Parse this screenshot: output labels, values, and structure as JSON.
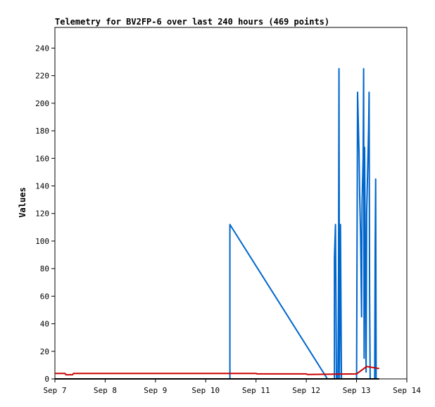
{
  "chart_data": {
    "type": "line",
    "title": "Telemetry for BV2FP-6 over last 240 hours (469 points)",
    "ylabel": "Values",
    "xlabel": "",
    "x_ticks": [
      "Sep 7",
      "Sep 8",
      "Sep 9",
      "Sep 10",
      "Sep 11",
      "Sep 12",
      "Sep 13",
      "Sep 14"
    ],
    "x_range": [
      "Sep 7",
      "Sep 14"
    ],
    "y_ticks": [
      0,
      20,
      40,
      60,
      80,
      100,
      120,
      140,
      160,
      180,
      200,
      220,
      240
    ],
    "ylim": [
      0,
      255
    ],
    "grid": false,
    "legend": "none",
    "series": [
      {
        "color": "#0066cc",
        "points": [
          [
            10.48,
            0
          ],
          [
            10.48,
            112
          ],
          [
            12.42,
            0
          ],
          [
            12.56,
            0
          ],
          [
            12.56,
            88
          ],
          [
            12.58,
            112
          ],
          [
            12.6,
            0
          ],
          [
            12.63,
            0
          ],
          [
            12.64,
            65
          ],
          [
            12.65,
            225
          ],
          [
            12.66,
            0
          ],
          [
            12.68,
            112
          ],
          [
            12.7,
            0
          ],
          [
            13.0,
            0
          ],
          [
            13.02,
            208
          ],
          [
            13.03,
            193
          ],
          [
            13.05,
            163
          ],
          [
            13.06,
            135
          ],
          [
            13.08,
            104
          ],
          [
            13.09,
            75
          ],
          [
            13.1,
            45
          ],
          [
            13.11,
            128
          ],
          [
            13.13,
            160
          ],
          [
            13.14,
            225
          ],
          [
            13.15,
            15
          ],
          [
            13.16,
            168
          ],
          [
            13.18,
            55
          ],
          [
            13.19,
            5
          ],
          [
            13.2,
            120
          ],
          [
            13.22,
            150
          ],
          [
            13.24,
            182
          ],
          [
            13.25,
            208
          ],
          [
            13.26,
            60
          ],
          [
            13.27,
            0
          ],
          [
            13.36,
            0
          ],
          [
            13.37,
            95
          ],
          [
            13.38,
            145
          ],
          [
            13.39,
            0
          ]
        ]
      },
      {
        "color": "#cc0000",
        "points": [
          [
            7.0,
            4
          ],
          [
            7.2,
            4
          ],
          [
            7.22,
            3
          ],
          [
            7.35,
            3
          ],
          [
            7.37,
            4
          ],
          [
            9.0,
            4
          ],
          [
            10.0,
            4
          ],
          [
            11.0,
            4
          ],
          [
            11.02,
            3.6
          ],
          [
            12.0,
            3.6
          ],
          [
            12.02,
            3.2
          ],
          [
            13.0,
            3.6
          ],
          [
            13.2,
            9
          ],
          [
            13.45,
            7.5
          ]
        ]
      },
      {
        "color": "#000000",
        "points": [
          [
            7.0,
            0
          ],
          [
            13.45,
            0
          ]
        ]
      }
    ]
  }
}
